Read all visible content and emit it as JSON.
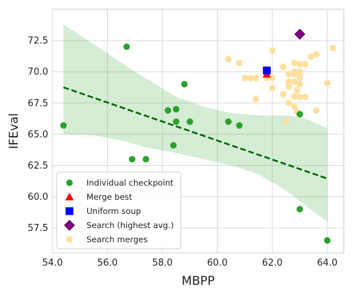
{
  "chart_data": {
    "type": "scatter",
    "xlabel": "MBPP",
    "ylabel": "IFEval",
    "xlim": [
      54,
      64.6
    ],
    "ylim": [
      55.5,
      75.0
    ],
    "xticks": [
      "54.0",
      "56.0",
      "58.0",
      "60.0",
      "62.0",
      "64.0"
    ],
    "yticks": [
      "57.5",
      "60.0",
      "62.5",
      "65.0",
      "67.5",
      "70.0",
      "72.5"
    ],
    "xtick_values": [
      54,
      56,
      58,
      60,
      62,
      64
    ],
    "ytick_values": [
      57.5,
      60,
      62.5,
      65,
      67.5,
      70,
      72.5
    ],
    "grid": true,
    "legend_position": "lower-left",
    "regression": {
      "line": [
        [
          54.4,
          68.75
        ],
        [
          64.0,
          61.45
        ]
      ],
      "ci_upper": [
        [
          54.4,
          73.8
        ],
        [
          55.5,
          72.2
        ],
        [
          57.0,
          70.0
        ],
        [
          58.5,
          68.0
        ],
        [
          59.5,
          67.2
        ],
        [
          60.5,
          66.7
        ],
        [
          61.5,
          66.5
        ],
        [
          62.5,
          66.5
        ],
        [
          63.0,
          66.4
        ],
        [
          64.0,
          65.5
        ]
      ],
      "ci_lower": [
        [
          54.4,
          65.0
        ],
        [
          55.5,
          64.9
        ],
        [
          56.5,
          64.5
        ],
        [
          57.5,
          63.9
        ],
        [
          58.5,
          63.5
        ],
        [
          59.5,
          63.0
        ],
        [
          60.5,
          62.5
        ],
        [
          61.5,
          61.8
        ],
        [
          62.5,
          60.5
        ],
        [
          63.5,
          58.8
        ],
        [
          64.0,
          58.0
        ]
      ],
      "line_color": "#006400",
      "band_color": "#2ca02c"
    },
    "series": [
      {
        "name": "Individual checkpoint",
        "marker": "circle",
        "color": "#2ca02c",
        "points": [
          [
            54.4,
            65.7
          ],
          [
            56.7,
            72.0
          ],
          [
            56.9,
            63.0
          ],
          [
            57.4,
            63.0
          ],
          [
            58.2,
            66.9
          ],
          [
            58.4,
            64.1
          ],
          [
            58.5,
            67.0
          ],
          [
            58.5,
            66.0
          ],
          [
            58.8,
            69.0
          ],
          [
            59.0,
            66.0
          ],
          [
            60.4,
            66.0
          ],
          [
            60.8,
            65.7
          ],
          [
            63.0,
            66.6
          ],
          [
            63.0,
            59.0
          ],
          [
            64.0,
            56.5
          ]
        ]
      },
      {
        "name": "Merge best",
        "marker": "triangle",
        "color": "#ff0000",
        "points": [
          [
            61.8,
            69.8
          ]
        ]
      },
      {
        "name": "Uniform soup",
        "marker": "square",
        "color": "#0000ff",
        "points": [
          [
            61.8,
            70.1
          ]
        ]
      },
      {
        "name": "Search (highest avg.)",
        "marker": "diamond",
        "color": "#800080",
        "points": [
          [
            63.0,
            73.0
          ]
        ]
      },
      {
        "name": "Search merges",
        "marker": "circle",
        "color": "#ffdf9e",
        "points": [
          [
            60.4,
            71.0
          ],
          [
            60.8,
            70.7
          ],
          [
            61.0,
            69.5
          ],
          [
            61.2,
            69.5
          ],
          [
            61.4,
            69.5
          ],
          [
            61.4,
            67.8
          ],
          [
            61.8,
            69.5
          ],
          [
            62.0,
            71.7
          ],
          [
            62.0,
            69.5
          ],
          [
            62.0,
            68.7
          ],
          [
            62.4,
            70.4
          ],
          [
            62.4,
            68.2
          ],
          [
            62.5,
            66.0
          ],
          [
            62.6,
            69.8
          ],
          [
            62.6,
            69.2
          ],
          [
            62.6,
            68.8
          ],
          [
            62.6,
            67.5
          ],
          [
            62.8,
            70.7
          ],
          [
            62.8,
            70.0
          ],
          [
            62.8,
            68.0
          ],
          [
            62.8,
            67.2
          ],
          [
            63.0,
            70.6
          ],
          [
            63.0,
            70.0
          ],
          [
            63.0,
            69.5
          ],
          [
            63.0,
            69.0
          ],
          [
            62.9,
            66.8
          ],
          [
            62.9,
            68.5
          ],
          [
            62.8,
            69.8
          ],
          [
            62.8,
            69.2
          ],
          [
            63.0,
            68.0
          ],
          [
            63.2,
            68.0
          ],
          [
            63.2,
            70.6
          ],
          [
            63.4,
            71.2
          ],
          [
            63.6,
            71.4
          ],
          [
            63.6,
            66.9
          ],
          [
            64.0,
            69.1
          ],
          [
            64.2,
            71.9
          ]
        ]
      }
    ]
  }
}
